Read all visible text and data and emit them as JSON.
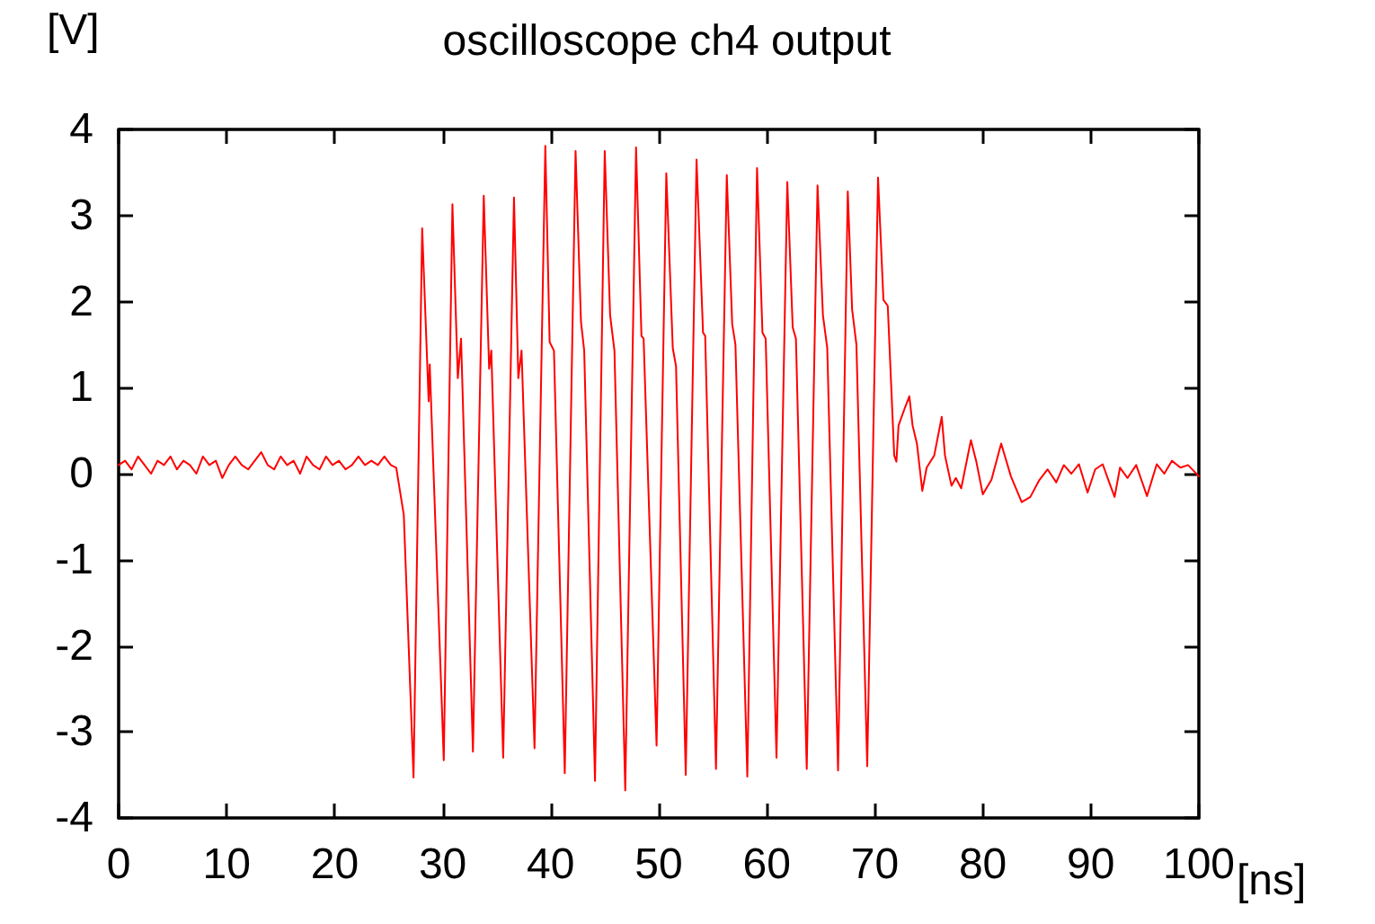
{
  "chart_data": {
    "type": "line",
    "title": "oscilloscope ch4 output",
    "xlabel": "[ns]",
    "ylabel": "[V]",
    "xlim": [
      0,
      100
    ],
    "xticks": [
      0,
      10,
      20,
      30,
      40,
      50,
      60,
      70,
      80,
      90,
      100
    ],
    "ylim": [
      -4,
      4
    ],
    "yticks": [
      -4,
      -3,
      -2,
      -1,
      0,
      1,
      2,
      3,
      4
    ],
    "grid": false,
    "marker": "none",
    "line_style": "solid",
    "series": [
      {
        "color": "#ff0000",
        "x": [
          0,
          0.6,
          1.2,
          1.8,
          2.4,
          3,
          3.6,
          4.2,
          4.8,
          5.4,
          6,
          6.6,
          7.2,
          7.8,
          8.4,
          9,
          9.6,
          10.2,
          10.8,
          11.4,
          12,
          12.6,
          13.2,
          13.8,
          14.4,
          15,
          15.6,
          16.2,
          16.8,
          17.4,
          18,
          18.6,
          19.2,
          19.8,
          20.4,
          21,
          21.6,
          22.2,
          22.8,
          23.4,
          24,
          24.6,
          25.2,
          25.7,
          26.4,
          27.3,
          28.1,
          28.7,
          28.8,
          30.1,
          30.9,
          31.4,
          31.7,
          32.8,
          33.8,
          34.3,
          34.5,
          35.6,
          36.6,
          37,
          37.3,
          38.5,
          39.5,
          39.9,
          40.3,
          41.3,
          42.3,
          42.8,
          43.1,
          44.1,
          45,
          45.5,
          45.9,
          46.9,
          47.9,
          48.4,
          48.6,
          49.8,
          50.7,
          51.3,
          51.6,
          52.5,
          53.5,
          54.1,
          54.3,
          55.3,
          56.3,
          56.8,
          57.1,
          58.2,
          59.1,
          59.6,
          59.9,
          60.9,
          61.9,
          62.4,
          62.7,
          63.7,
          64.7,
          65.2,
          65.6,
          66.6,
          67.5,
          67.9,
          68.3,
          69.3,
          70.3,
          70.8,
          71.2,
          71.8,
          72,
          72.2,
          72.8,
          73.2,
          73.5,
          73.9,
          74.4,
          74.8,
          75.5,
          76.2,
          76.5,
          77.1,
          77.5,
          78,
          78.9,
          79.4,
          80,
          80.8,
          81.7,
          82.6,
          83.6,
          84.4,
          85.2,
          86,
          86.8,
          87.5,
          88.2,
          88.9,
          89.7,
          90.4,
          91.1,
          91.7,
          92.2,
          92.7,
          93.4,
          94.2,
          95.2,
          96.1,
          96.8,
          97.5,
          98.3,
          99,
          100
        ],
        "values": [
          0.1,
          0.15,
          0.05,
          0.2,
          0.1,
          0.0,
          0.15,
          0.1,
          0.2,
          0.05,
          0.15,
          0.1,
          0.0,
          0.2,
          0.1,
          0.15,
          -0.05,
          0.1,
          0.2,
          0.1,
          0.05,
          0.15,
          0.25,
          0.1,
          0.05,
          0.2,
          0.1,
          0.15,
          0.0,
          0.2,
          0.1,
          0.05,
          0.2,
          0.1,
          0.15,
          0.05,
          0.1,
          0.2,
          0.1,
          0.15,
          0.1,
          0.2,
          0.1,
          0.07,
          -0.48,
          -3.53,
          2.85,
          0.84,
          1.27,
          -3.33,
          3.13,
          1.11,
          1.57,
          -3.23,
          3.23,
          1.22,
          1.43,
          -3.3,
          3.21,
          1.11,
          1.43,
          -3.19,
          3.81,
          1.53,
          1.43,
          -3.48,
          3.75,
          1.77,
          1.43,
          -3.57,
          3.75,
          1.84,
          1.43,
          -3.68,
          3.79,
          1.6,
          1.57,
          -3.16,
          3.49,
          1.46,
          1.25,
          -3.5,
          3.65,
          1.64,
          1.6,
          -3.43,
          3.47,
          1.74,
          1.5,
          -3.52,
          3.55,
          1.64,
          1.57,
          -3.3,
          3.39,
          1.7,
          1.57,
          -3.43,
          3.35,
          1.84,
          1.46,
          -3.45,
          3.28,
          1.91,
          1.5,
          -3.4,
          3.44,
          2.02,
          1.95,
          0.21,
          0.14,
          0.56,
          0.77,
          0.9,
          0.56,
          0.35,
          -0.2,
          0.07,
          0.21,
          0.66,
          0.21,
          -0.14,
          -0.05,
          -0.17,
          0.39,
          0.14,
          -0.24,
          -0.07,
          0.35,
          -0.03,
          -0.33,
          -0.27,
          -0.08,
          0.05,
          -0.1,
          0.1,
          0.0,
          0.11,
          -0.22,
          0.05,
          0.11,
          -0.1,
          -0.27,
          0.07,
          -0.05,
          0.1,
          -0.26,
          0.11,
          0.0,
          0.15,
          0.07,
          0.1,
          -0.03
        ]
      }
    ]
  }
}
